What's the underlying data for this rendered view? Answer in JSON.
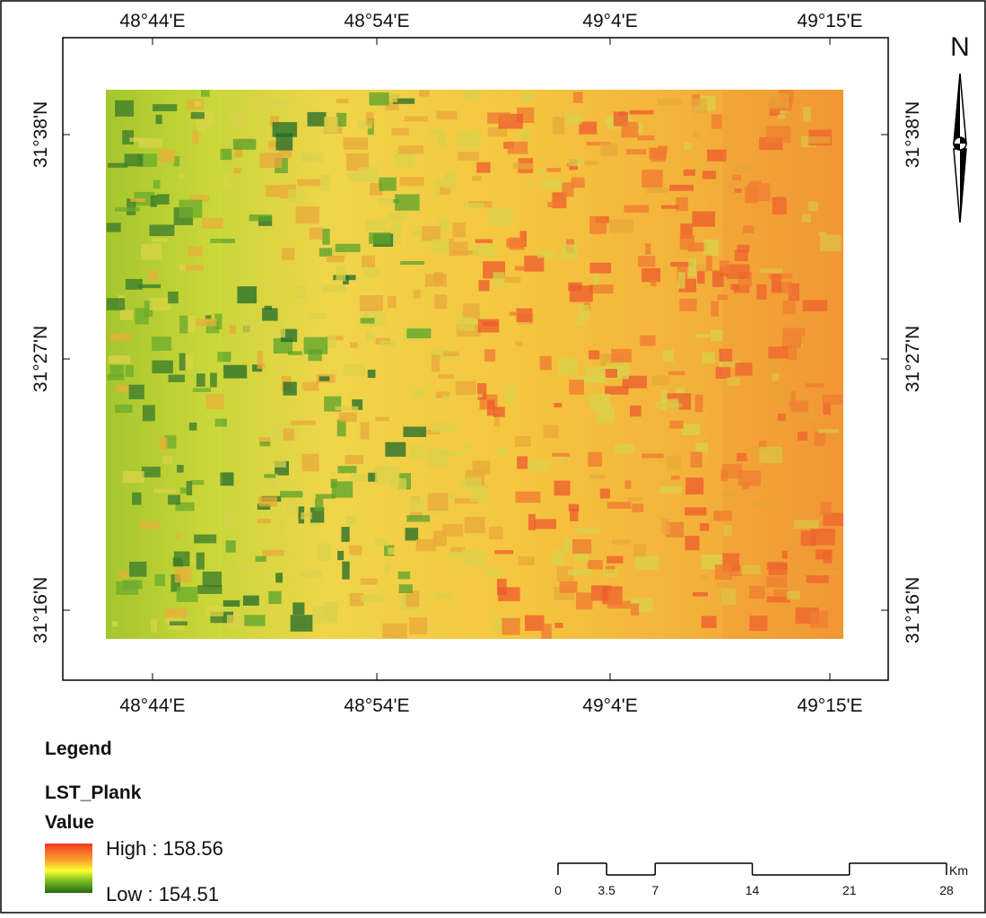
{
  "map": {
    "top_labels": [
      "48°44'E",
      "48°54'E",
      "49°4'E",
      "49°15'E"
    ],
    "bottom_labels": [
      "48°44'E",
      "48°54'E",
      "49°4'E",
      "49°15'E"
    ],
    "left_labels": [
      "31°38'N",
      "31°27'N",
      "31°16'N"
    ],
    "right_labels": [
      "31°38'N",
      "31°27'N",
      "31°16'N"
    ],
    "north": "N"
  },
  "legend": {
    "title": "Legend",
    "layer": "LST_Plank",
    "field": "Value",
    "high": "High : 158.56",
    "low": "Low : 154.51"
  },
  "scale_bar": {
    "ticks": [
      0,
      3.5,
      7,
      14,
      21,
      28
    ],
    "unit": "Km"
  }
}
